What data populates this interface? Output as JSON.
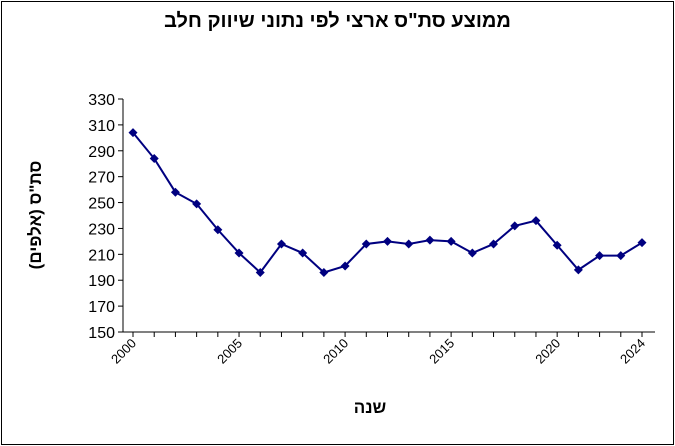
{
  "chart_data": {
    "type": "line",
    "title": "ממוצע סת\"ס ארצי לפי נתוני שיווק חלב",
    "xlabel": "שנה",
    "ylabel": "סת\"ס (אלפים)",
    "ylim": [
      150,
      330
    ],
    "yticks": [
      150,
      170,
      190,
      210,
      230,
      250,
      270,
      290,
      310,
      330
    ],
    "xlim": [
      2000,
      2024
    ],
    "xtick_labels": [
      "2000",
      "2005",
      "2010",
      "2015",
      "2020",
      "2024"
    ],
    "grid": false,
    "series": [
      {
        "color": "#000080",
        "x": [
          2000,
          2001,
          2002,
          2003,
          2004,
          2005,
          2006,
          2007,
          2008,
          2009,
          2010,
          2011,
          2012,
          2013,
          2014,
          2015,
          2016,
          2017,
          2018,
          2019,
          2020,
          2021,
          2022,
          2023,
          2024
        ],
        "values": [
          304,
          284,
          258,
          249,
          229,
          211,
          196,
          218,
          211,
          196,
          201,
          218,
          220,
          218,
          221,
          220,
          211,
          218,
          232,
          236,
          217,
          198,
          209,
          209,
          219
        ]
      }
    ]
  }
}
